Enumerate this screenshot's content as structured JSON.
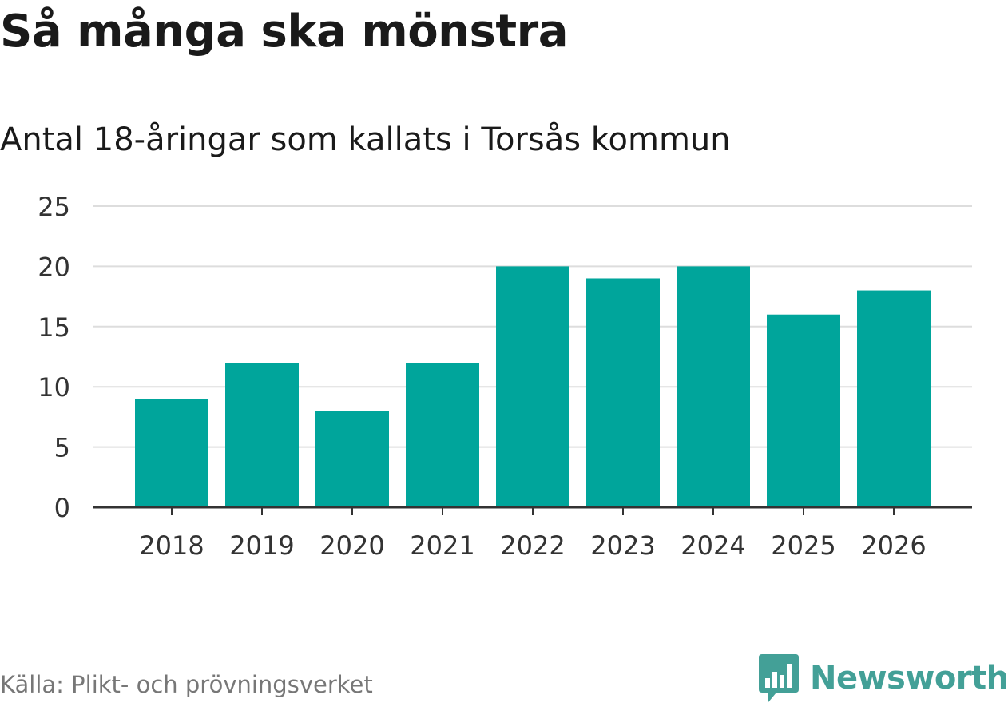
{
  "header": {
    "title": "Så många ska mönstra",
    "subtitle": "Antal 18-åringar som kallats i Torsås kommun"
  },
  "footer": {
    "source": "Källa: Plikt- och prövningsverket",
    "brand": "Newsworthy",
    "brand_icon": "bar-chart-badge-icon"
  },
  "colors": {
    "bar": "#00a59b",
    "grid": "#dddddd",
    "axis": "#333333",
    "brand": "#43a097"
  },
  "chart_data": {
    "type": "bar",
    "title": "Så många ska mönstra",
    "subtitle": "Antal 18-åringar som kallats i Torsås kommun",
    "categories": [
      "2018",
      "2019",
      "2020",
      "2021",
      "2022",
      "2023",
      "2024",
      "2025",
      "2026"
    ],
    "values": [
      9,
      12,
      8,
      12,
      20,
      19,
      20,
      16,
      18
    ],
    "ylim": [
      0,
      25
    ],
    "yticks": [
      0,
      5,
      10,
      15,
      20,
      25
    ],
    "xlabel": "",
    "ylabel": "",
    "grid": true,
    "legend": "none"
  }
}
